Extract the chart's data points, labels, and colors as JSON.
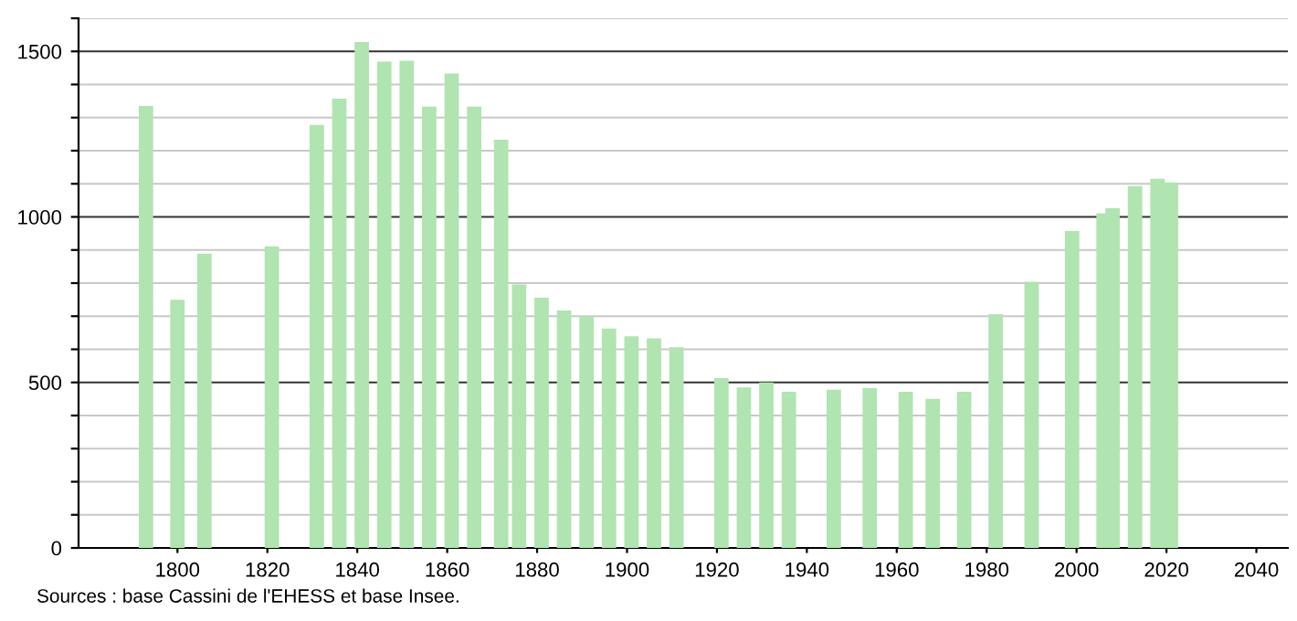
{
  "chart_data": {
    "type": "bar",
    "color": "#b0e4b0",
    "x": [
      1793,
      1800,
      1806,
      1821,
      1831,
      1836,
      1841,
      1846,
      1851,
      1856,
      1861,
      1866,
      1872,
      1876,
      1881,
      1886,
      1891,
      1896,
      1901,
      1906,
      1911,
      1921,
      1926,
      1931,
      1936,
      1946,
      1954,
      1962,
      1968,
      1975,
      1982,
      1990,
      1999,
      2006,
      2008,
      2013,
      2018,
      2021
    ],
    "values": [
      1335,
      750,
      889,
      911,
      1278,
      1357,
      1528,
      1469,
      1472,
      1333,
      1433,
      1333,
      1233,
      796,
      756,
      717,
      700,
      663,
      639,
      633,
      606,
      513,
      485,
      500,
      472,
      478,
      483,
      472,
      450,
      472,
      706,
      804,
      957,
      1011,
      1026,
      1093,
      1115,
      1104
    ],
    "xlim": [
      1778,
      2047
    ],
    "xticks": [
      1800,
      1820,
      1840,
      1860,
      1880,
      1900,
      1920,
      1940,
      1960,
      1980,
      2000,
      2020,
      2040
    ],
    "ylim": [
      0,
      1600
    ],
    "yticks": [
      0,
      {
        "value": 100,
        "label": null
      },
      {
        "value": 200,
        "label": null
      },
      {
        "value": 300,
        "label": null
      },
      {
        "value": 400,
        "label": null
      },
      500,
      {
        "value": 600,
        "label": null
      },
      {
        "value": 700,
        "label": null
      },
      {
        "value": 800,
        "label": null
      },
      {
        "value": 900,
        "label": null
      },
      1000,
      {
        "value": 1100,
        "label": null
      },
      {
        "value": 1200,
        "label": null
      },
      {
        "value": 1300,
        "label": null
      },
      {
        "value": 1400,
        "label": null
      },
      1500,
      {
        "value": 1600,
        "label": null
      }
    ],
    "grid": "y",
    "annotations": [
      "Sources : base Cassini de l'EHESS et base Insee."
    ]
  }
}
